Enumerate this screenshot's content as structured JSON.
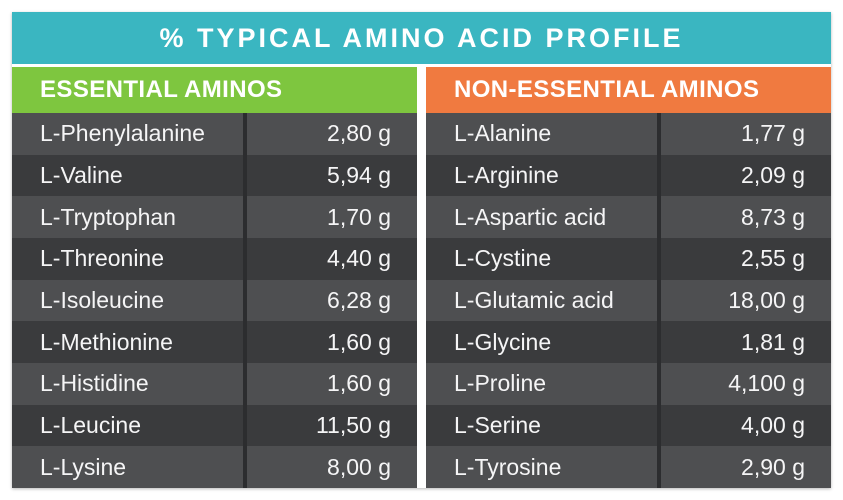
{
  "title": "% TYPICAL AMINO ACID PROFILE",
  "colors": {
    "teal": "#3ab6c1",
    "green": "#7ec63f",
    "orange": "#f07a40",
    "row_light": "#4e4f51",
    "row_dark": "#3a3b3d",
    "divider": "#2c2d2f",
    "text": "#f5f5f6"
  },
  "chart_data": {
    "type": "table",
    "title": "% TYPICAL AMINO ACID PROFILE",
    "layout": "two side-by-side two-column tables with colored headers and alternating dark gray rows, white text, values right-aligned",
    "unit": "g",
    "tables": [
      {
        "header": "ESSENTIAL AMINOS",
        "header_color": "#7ec63f",
        "rows": [
          {
            "name": "L-Phenylalanine",
            "value": "2,80 g"
          },
          {
            "name": "L-Valine",
            "value": "5,94 g"
          },
          {
            "name": "L-Tryptophan",
            "value": "1,70 g"
          },
          {
            "name": "L-Threonine",
            "value": "4,40 g"
          },
          {
            "name": "L-Isoleucine",
            "value": "6,28 g"
          },
          {
            "name": "L-Methionine",
            "value": "1,60 g"
          },
          {
            "name": "L-Histidine",
            "value": "1,60 g"
          },
          {
            "name": "L-Leucine",
            "value": "11,50 g"
          },
          {
            "name": "L-Lysine",
            "value": "8,00 g"
          }
        ]
      },
      {
        "header": "NON-ESSENTIAL AMINOS",
        "header_color": "#f07a40",
        "rows": [
          {
            "name": "L-Alanine",
            "value": "1,77 g"
          },
          {
            "name": "L-Arginine",
            "value": "2,09 g"
          },
          {
            "name": "L-Aspartic acid",
            "value": "8,73 g"
          },
          {
            "name": "L-Cystine",
            "value": "2,55 g"
          },
          {
            "name": "L-Glutamic acid",
            "value": "18,00 g"
          },
          {
            "name": "L-Glycine",
            "value": "1,81 g"
          },
          {
            "name": "L-Proline",
            "value": "4,100 g"
          },
          {
            "name": "L-Serine",
            "value": "4,00 g"
          },
          {
            "name": "L-Tyrosine",
            "value": "2,90 g"
          }
        ]
      }
    ]
  }
}
